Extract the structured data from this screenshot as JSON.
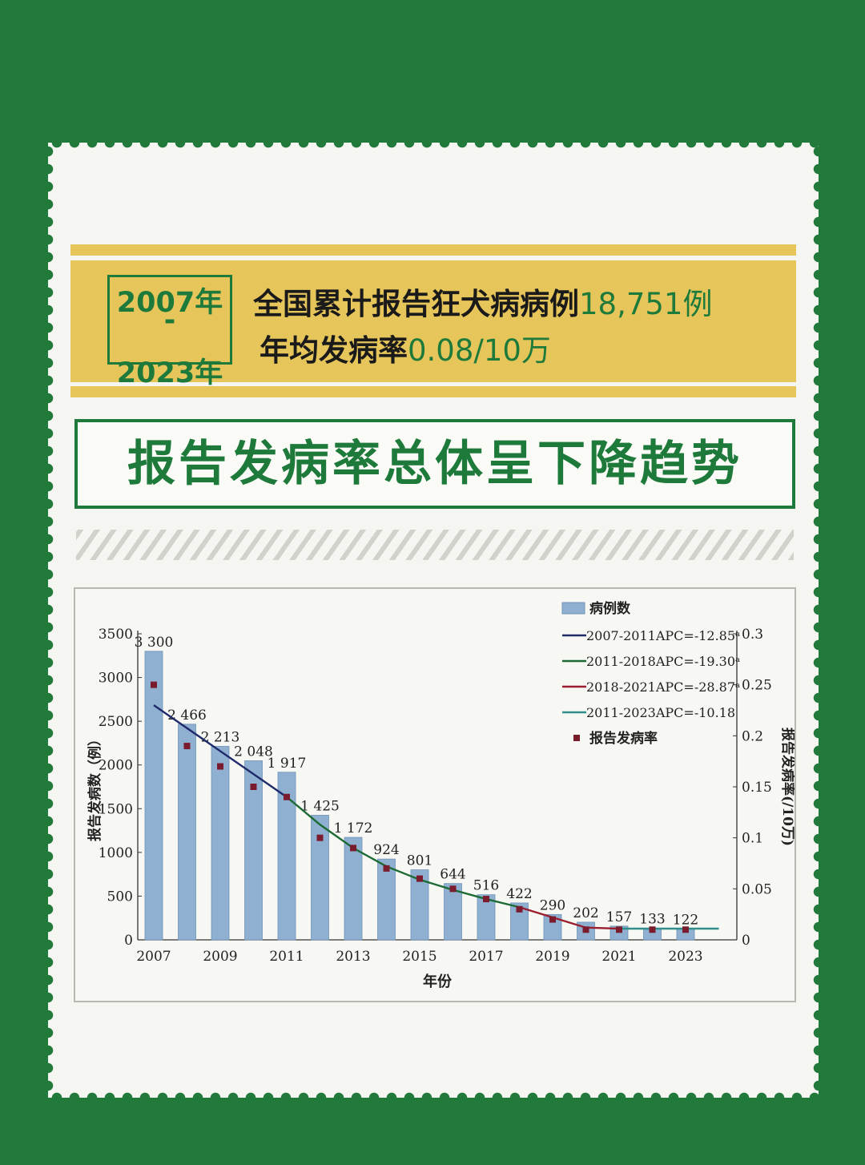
{
  "header": {
    "year_start": "2007年",
    "year_dash": "-",
    "year_end": "2023年",
    "line1_text": "全国累计报告狂犬病病例",
    "line1_value": "18,751例",
    "line2_text": "年均发病率",
    "line2_value": "0.08/10万"
  },
  "headline": "报告发病率总体呈下降趋势",
  "colors": {
    "background_green": "#217a3a",
    "gold": "#e6c55a",
    "bar_blue": "#8fb0d1",
    "rate_marker": "#7a1c2e",
    "apc_2007_2011": "#1f2a6b",
    "apc_2011_2018": "#1d6b34",
    "apc_2018_2021": "#9b1f2e",
    "apc_2011_2023": "#2f8f8a"
  },
  "chart_data": {
    "type": "bar",
    "categories": [
      "2007",
      "2008",
      "2009",
      "2010",
      "2011",
      "2012",
      "2013",
      "2014",
      "2015",
      "2016",
      "2017",
      "2018",
      "2019",
      "2020",
      "2021",
      "2022",
      "2023"
    ],
    "x_tick_labels": [
      "2007",
      "2009",
      "2011",
      "2013",
      "2015",
      "2017",
      "2019",
      "2021",
      "2023"
    ],
    "xlabel": "年份",
    "ylabel": "报告发病数（例）",
    "y2label": "报告发病率(/10万)",
    "ylim": [
      0,
      3500
    ],
    "y_ticks": [
      "0",
      "500",
      "1000",
      "1500",
      "2000",
      "2500",
      "3000",
      "3500"
    ],
    "y2lim": [
      0,
      0.3
    ],
    "y2_ticks": [
      "0",
      "0.05",
      "0.1",
      "0.15",
      "0.2",
      "0.25",
      "0.3"
    ],
    "series": [
      {
        "name": "病例数",
        "kind": "bar",
        "values": [
          3300,
          2466,
          2213,
          2048,
          1917,
          1425,
          1172,
          924,
          801,
          644,
          516,
          422,
          290,
          202,
          157,
          133,
          122
        ],
        "labels": [
          "3 300",
          "2 466",
          "2 213",
          "2 048",
          "1 917",
          "1 425",
          "1 172",
          "924",
          "801",
          "644",
          "516",
          "422",
          "290",
          "202",
          "157",
          "133",
          "122"
        ]
      },
      {
        "name": "报告发病率",
        "kind": "scatter",
        "axis": "y2",
        "values": [
          0.25,
          0.19,
          0.17,
          0.15,
          0.14,
          0.1,
          0.09,
          0.07,
          0.06,
          0.05,
          0.04,
          0.03,
          0.02,
          0.01,
          0.01,
          0.01,
          0.01
        ]
      },
      {
        "name": "2007-2011APC=-12.85ᵃ",
        "kind": "line",
        "axis": "y2",
        "x": [
          "2007",
          "2011"
        ],
        "values": [
          0.23,
          0.14
        ]
      },
      {
        "name": "2011-2018APC=-19.30ᵃ",
        "kind": "line",
        "axis": "y2",
        "x": [
          "2011",
          "2012",
          "2013",
          "2014",
          "2015",
          "2016",
          "2017",
          "2018"
        ],
        "values": [
          0.14,
          0.113,
          0.09,
          0.072,
          0.059,
          0.049,
          0.04,
          0.032
        ]
      },
      {
        "name": "2018-2021APC=-28.87ᵃ",
        "kind": "line",
        "axis": "y2",
        "x": [
          "2018",
          "2019",
          "2020",
          "2021"
        ],
        "values": [
          0.032,
          0.022,
          0.012,
          0.011
        ]
      },
      {
        "name": "2011-2023APC=-10.18",
        "kind": "line",
        "axis": "y2",
        "x": [
          "2021",
          "2022",
          "2023",
          "2024"
        ],
        "values": [
          0.011,
          0.011,
          0.011,
          0.011
        ]
      }
    ],
    "legend_position": "top-right",
    "grid": false
  }
}
